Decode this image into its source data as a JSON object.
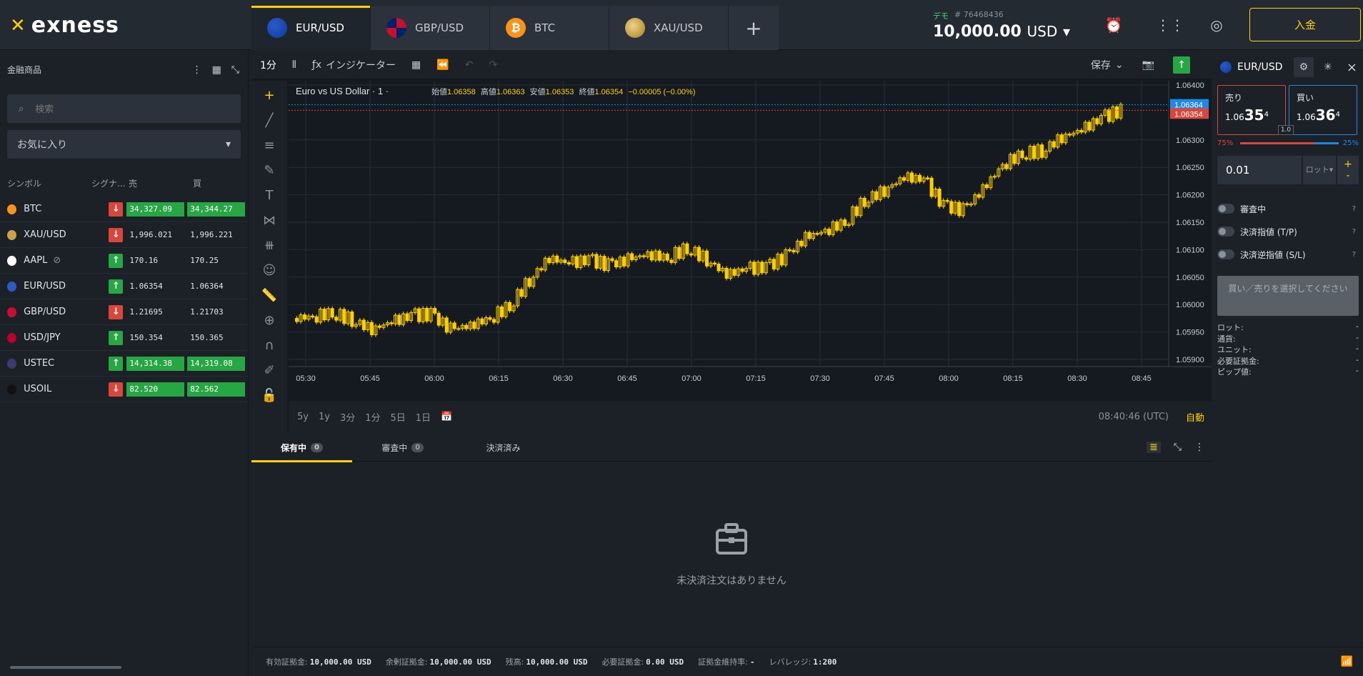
{
  "brand": {
    "logo": "exness"
  },
  "tabs": [
    {
      "label": "EUR/USD"
    },
    {
      "label": "GBP/USD"
    },
    {
      "label": "BTC"
    },
    {
      "label": "XAU/USD"
    }
  ],
  "account": {
    "mode": "デモ",
    "id": "# 76468436",
    "balance": "10,000.00",
    "currency": "USD",
    "deposit_label": "入金"
  },
  "left": {
    "title": "金融商品",
    "search_placeholder": "検索",
    "favorites": "お気に入り",
    "columns": {
      "symbol": "シンボル",
      "signal": "シグナ...",
      "sell": "売",
      "buy": "買"
    },
    "symbols": [
      {
        "name": "BTC",
        "signal": "down",
        "sell": "34,327.09",
        "buy": "34,344.27",
        "hl": true,
        "color": "#f7931a"
      },
      {
        "name": "XAU/USD",
        "signal": "down",
        "sell": "1,996.021",
        "buy": "1,996.221",
        "hl": false,
        "color": "#c9a24b"
      },
      {
        "name": "AAPL",
        "signal": "up",
        "sell": "170.16",
        "buy": "170.25",
        "hl": false,
        "color": "#ffffff",
        "closed": true
      },
      {
        "name": "EUR/USD",
        "signal": "up",
        "sell": "1.06354",
        "buy": "1.06364",
        "hl": false,
        "color": "#2b5cc6"
      },
      {
        "name": "GBP/USD",
        "signal": "down",
        "sell": "1.21695",
        "buy": "1.21703",
        "hl": false,
        "color": "#c8102e"
      },
      {
        "name": "USD/JPY",
        "signal": "up",
        "sell": "150.354",
        "buy": "150.365",
        "hl": false,
        "color": "#bc002d"
      },
      {
        "name": "USTEC",
        "signal": "up",
        "sell": "14,314.38",
        "buy": "14,319.08",
        "hl": true,
        "color": "#3c3b6e"
      },
      {
        "name": "USOIL",
        "signal": "down",
        "sell": "82.520",
        "buy": "82.562",
        "hl": true,
        "color": "#111111"
      }
    ]
  },
  "toolbar": {
    "interval": "1分",
    "indicators": "インジケーター",
    "save": "保存"
  },
  "chart": {
    "legend_title": "Euro vs US Dollar · 1 ·",
    "open_label": "始値",
    "open": "1.06358",
    "high_label": "高値",
    "high": "1.06363",
    "low_label": "安値",
    "low": "1.06353",
    "close_label": "終値",
    "close": "1.06354",
    "change": "−0.00005 (−0.00%)",
    "ask_tag": "1.06364",
    "bid_tag": "1.06354",
    "ranges": [
      "5y",
      "1y",
      "3分",
      "1分",
      "5日",
      "1日"
    ],
    "time": "08:40:46 (UTC)",
    "auto": "自動"
  },
  "chart_data": {
    "type": "candlestick",
    "x_labels": [
      "05:30",
      "05:45",
      "06:00",
      "06:15",
      "06:30",
      "06:45",
      "07:00",
      "07:15",
      "07:30",
      "07:45",
      "08:00",
      "08:15",
      "08:30",
      "08:45"
    ],
    "y_ticks": [
      "1.06400",
      "1.06300",
      "1.06250",
      "1.06200",
      "1.06150",
      "1.06100",
      "1.06050",
      "1.06000",
      "1.05950",
      "1.05900"
    ],
    "ylim": [
      1.059,
      1.064
    ],
    "series": [
      {
        "name": "close",
        "values": [
          1.05975,
          1.05978,
          1.05985,
          1.05972,
          1.05955,
          1.05968,
          1.0598,
          1.05982,
          1.05955,
          1.05962,
          1.05975,
          1.05998,
          1.06045,
          1.06085,
          1.06075,
          1.06082,
          1.06072,
          1.06082,
          1.06092,
          1.06085,
          1.06103,
          1.06082,
          1.06055,
          1.06065,
          1.06068,
          1.06088,
          1.06122,
          1.06135,
          1.0615,
          1.0619,
          1.06208,
          1.06232,
          1.06228,
          1.0618,
          1.06172,
          1.0621,
          1.06255,
          1.06275,
          1.0628,
          1.06305,
          1.06318,
          1.0634,
          1.06354
        ]
      }
    ]
  },
  "positions": {
    "tabs": [
      {
        "label": "保有中",
        "count": "0"
      },
      {
        "label": "審査中",
        "count": "0"
      },
      {
        "label": "決済済み"
      }
    ],
    "empty": "未決済注文はありません"
  },
  "footer": {
    "items": [
      {
        "label": "有効証拠金:",
        "value": "10,000.00 USD"
      },
      {
        "label": "余剰証拠金:",
        "value": "10,000.00 USD"
      },
      {
        "label": "残高:",
        "value": "10,000.00 USD"
      },
      {
        "label": "必要証拠金:",
        "value": "0.00 USD"
      },
      {
        "label": "証拠金維持率:",
        "value": "-"
      },
      {
        "label": "レバレッジ:",
        "value": "1:200"
      }
    ]
  },
  "right": {
    "symbol": "EUR/USD",
    "sell_label": "売り",
    "sell_prefix": "1.06",
    "sell_big": "35",
    "sell_sup": "4",
    "buy_label": "買い",
    "buy_prefix": "1.06",
    "buy_big": "36",
    "buy_sup": "4",
    "spread": "1.0",
    "sell_pct": "75%",
    "buy_pct": "25%",
    "sell_fraction": 0.75,
    "lot_value": "0.01",
    "lot_unit": "ロット",
    "toggles": [
      "審査中",
      "決済指値 (T/P)",
      "決済逆指値 (S/L)"
    ],
    "action": "買い／売りを選択してください",
    "summary": [
      {
        "label": "ロット:",
        "value": "-"
      },
      {
        "label": "通貨:",
        "value": "-"
      },
      {
        "label": "ユニット:",
        "value": "-"
      },
      {
        "label": "必要証拠金:",
        "value": "-"
      },
      {
        "label": "ピップ値:",
        "value": "-"
      }
    ]
  }
}
